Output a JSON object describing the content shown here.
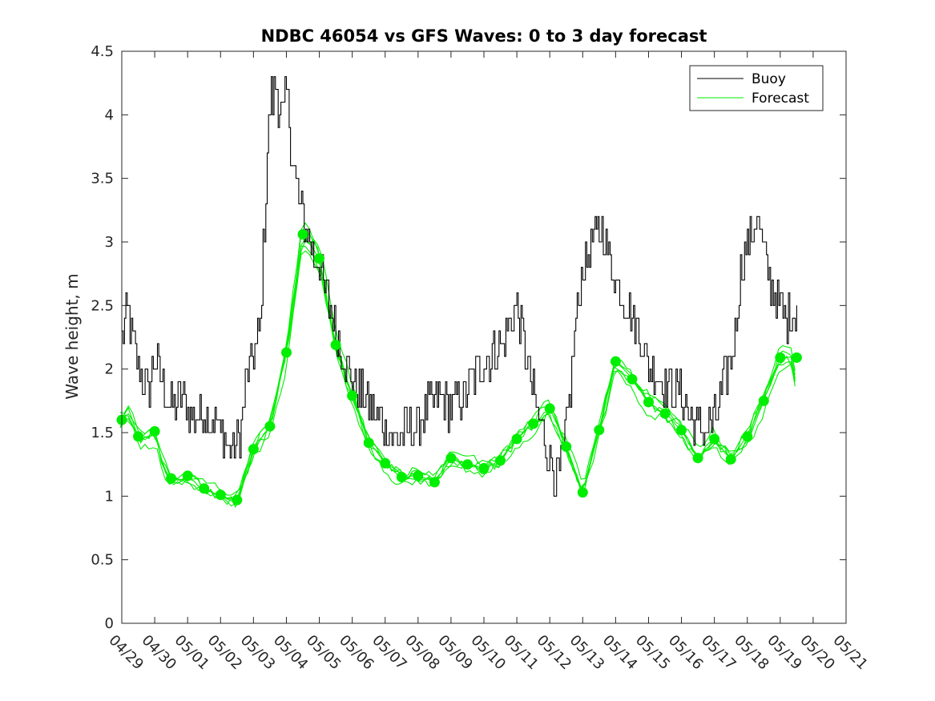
{
  "chart_data": {
    "type": "line",
    "title": "NDBC 46054 vs GFS Waves: 0 to 3 day forecast",
    "xlabel": "",
    "ylabel": "Wave height, m",
    "ylim": [
      0,
      4.5
    ],
    "yticks": [
      "0",
      "0.5",
      "1",
      "1.5",
      "2",
      "2.5",
      "3",
      "3.5",
      "4",
      "4.5"
    ],
    "xticks": [
      "04/29",
      "04/30",
      "05/01",
      "05/02",
      "05/03",
      "05/04",
      "05/05",
      "05/06",
      "05/07",
      "05/08",
      "05/09",
      "05/10",
      "05/11",
      "05/12",
      "05/13",
      "05/14",
      "05/15",
      "05/16",
      "05/17",
      "05/18",
      "05/19",
      "05/20",
      "05/21"
    ],
    "legend": {
      "location": "top-right",
      "entries": [
        "Buoy",
        "Forecast"
      ]
    },
    "colors": {
      "buoy": "#000000",
      "forecast": "#00ee00",
      "axis": "#262626"
    },
    "series": [
      {
        "name": "Buoy",
        "x_days": [
          0,
          0.15,
          0.3,
          0.5,
          0.8,
          1.0,
          1.2,
          1.5,
          1.8,
          2.0,
          2.3,
          2.5,
          2.8,
          3.0,
          3.2,
          3.4,
          3.6,
          3.8,
          4.0,
          4.2,
          4.4,
          4.5,
          4.7,
          4.9,
          5.0,
          5.2,
          5.4,
          5.6,
          5.8,
          6.0,
          6.3,
          6.6,
          7.0,
          7.5,
          8.0,
          8.3,
          8.6,
          9.0,
          9.3,
          9.6,
          10.0,
          10.4,
          10.8,
          11.2,
          11.6,
          12.0,
          12.2,
          12.5,
          12.8,
          13.0,
          13.2,
          13.4,
          13.6,
          13.8,
          14.0,
          14.3,
          14.6,
          15.0,
          15.4,
          15.8,
          16.0,
          16.3,
          16.6,
          17.0,
          17.3,
          17.6,
          17.8,
          18.0,
          18.3,
          18.6,
          18.8,
          19.0,
          19.3,
          19.6,
          19.8,
          20.0,
          20.2,
          20.4,
          20.5
        ],
        "values": [
          2.2,
          2.5,
          2.3,
          2.0,
          1.8,
          2.1,
          1.9,
          1.7,
          1.8,
          1.7,
          1.6,
          1.65,
          1.6,
          1.5,
          1.4,
          1.35,
          1.5,
          2.0,
          2.1,
          2.3,
          3.6,
          4.1,
          4.2,
          3.9,
          4.2,
          3.6,
          3.3,
          3.1,
          2.9,
          2.8,
          2.5,
          2.2,
          1.9,
          1.7,
          1.55,
          1.45,
          1.5,
          1.55,
          1.7,
          1.8,
          1.7,
          1.8,
          2.0,
          2.1,
          2.2,
          2.5,
          2.2,
          1.8,
          1.5,
          1.3,
          1.15,
          1.3,
          1.8,
          2.4,
          2.8,
          3.0,
          3.1,
          2.7,
          2.5,
          2.2,
          2.0,
          1.95,
          1.85,
          1.8,
          1.6,
          1.5,
          1.55,
          1.6,
          1.9,
          2.2,
          2.8,
          3.0,
          3.2,
          2.8,
          2.6,
          2.5,
          2.4,
          2.45,
          2.5
        ]
      },
      {
        "name": "Forecast",
        "x_days": [
          -0.05,
          0.25,
          0.5,
          0.75,
          1.0,
          1.25,
          1.5,
          1.75,
          2.0,
          2.25,
          2.5,
          2.75,
          3.0,
          3.25,
          3.5,
          4.0,
          4.5,
          5.0,
          5.5,
          6.0,
          6.5,
          7.0,
          7.5,
          8.0,
          8.5,
          9.0,
          9.5,
          10.0,
          10.5,
          11.0,
          11.5,
          12.0,
          12.5,
          13.0,
          13.5,
          14.0,
          14.5,
          15.0,
          15.5,
          16.0,
          16.5,
          17.0,
          17.5,
          18.0,
          18.5,
          19.0,
          19.5,
          20.0,
          20.35,
          20.5
        ],
        "values": [
          1.6,
          1.65,
          1.47,
          1.45,
          1.5,
          1.25,
          1.13,
          1.12,
          1.15,
          1.1,
          1.06,
          1.03,
          1.01,
          0.98,
          0.97,
          1.37,
          1.55,
          2.13,
          3.06,
          2.87,
          2.19,
          1.79,
          1.42,
          1.26,
          1.15,
          1.16,
          1.11,
          1.3,
          1.25,
          1.22,
          1.28,
          1.45,
          1.57,
          1.69,
          1.39,
          1.03,
          1.52,
          2.06,
          1.92,
          1.74,
          1.65,
          1.52,
          1.3,
          1.45,
          1.29,
          1.47,
          1.75,
          2.09,
          2.09,
          1.85
        ]
      }
    ],
    "forecast_markers": {
      "x_days": [
        0,
        0.5,
        1.0,
        1.5,
        2.0,
        2.5,
        3.0,
        3.5,
        4.0,
        4.5,
        5.0,
        5.5,
        6.0,
        6.5,
        7.0,
        7.5,
        8.0,
        8.5,
        9.0,
        9.5,
        10.0,
        10.5,
        11.0,
        11.5,
        12.0,
        12.5,
        13.0,
        13.5,
        14.0,
        14.5,
        15.0,
        15.5,
        16.0,
        16.5,
        17.0,
        17.5,
        18.0,
        18.5,
        19.0,
        19.5,
        20.0,
        20.5
      ],
      "values": [
        1.6,
        1.47,
        1.51,
        1.14,
        1.16,
        1.06,
        1.01,
        0.97,
        1.37,
        1.55,
        2.13,
        3.06,
        2.87,
        2.19,
        1.79,
        1.42,
        1.26,
        1.15,
        1.16,
        1.11,
        1.3,
        1.25,
        1.22,
        1.28,
        1.45,
        1.57,
        1.69,
        1.39,
        1.03,
        1.52,
        2.06,
        1.92,
        1.74,
        1.65,
        1.52,
        1.3,
        1.45,
        1.29,
        1.47,
        1.75,
        2.09,
        2.09
      ]
    }
  }
}
